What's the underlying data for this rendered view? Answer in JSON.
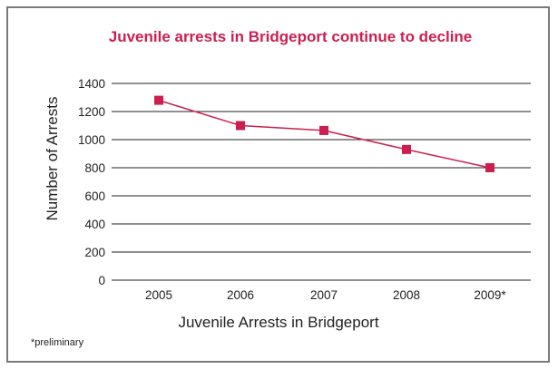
{
  "chart_data": {
    "type": "line",
    "title": "Juvenile arrests in Bridgeport continue to decline",
    "xlabel": "Juvenile Arrests in Bridgeport",
    "ylabel": "Number of Arrests",
    "categories": [
      "2005",
      "2006",
      "2007",
      "2008",
      "2009*"
    ],
    "series": [
      {
        "values": [
          1280,
          1100,
          1065,
          930,
          800
        ]
      }
    ],
    "ylim": [
      0,
      1400
    ],
    "yticks": [
      0,
      200,
      400,
      600,
      800,
      1000,
      1200,
      1400
    ],
    "grid": true,
    "legend": "none",
    "footnote": "*preliminary",
    "colors": {
      "series": "#cc1f4f",
      "title": "#cc1f4f",
      "grid": "#222222",
      "frame": "#7a7a7a"
    }
  }
}
